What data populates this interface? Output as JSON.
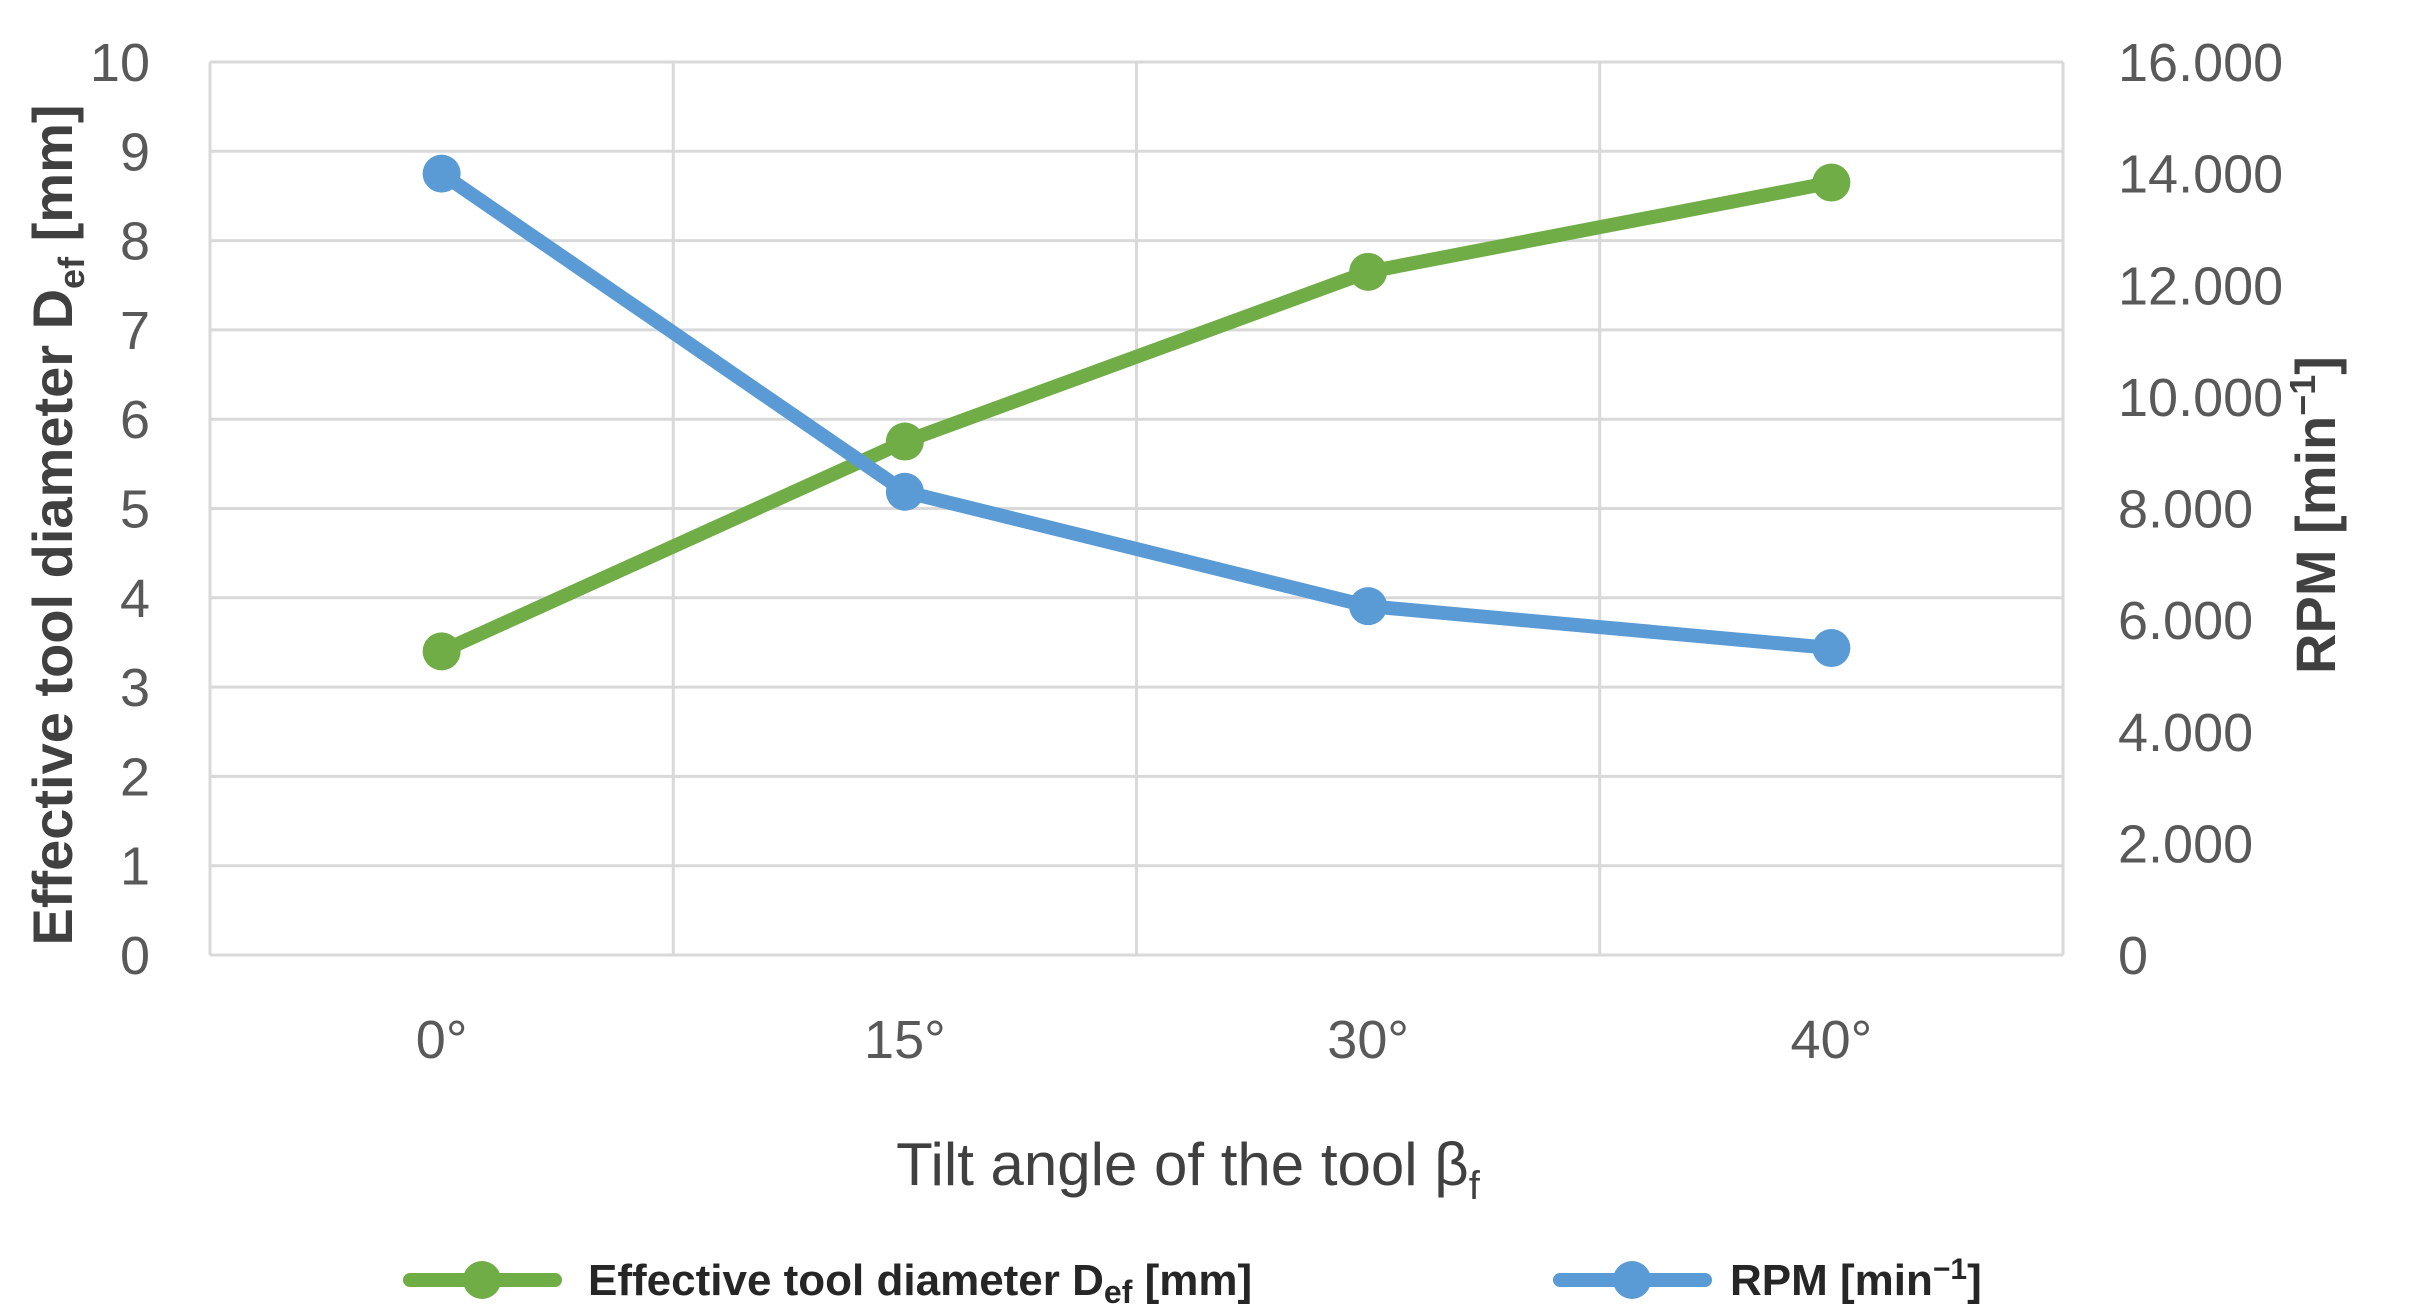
{
  "chart_data": {
    "type": "line",
    "categories": [
      "0°",
      "15°",
      "30°",
      "40°"
    ],
    "series": [
      {
        "name": "Effective tool diameter D",
        "name_sub": "ef",
        "name_suffix": " [mm]",
        "axis": "left",
        "color": "#70ad47",
        "values": [
          3.4,
          5.75,
          7.65,
          8.65
        ]
      },
      {
        "name": "RPM [min",
        "name_sup": "−1",
        "name_suffix": "]",
        "axis": "right",
        "color": "#5b9bd5",
        "values": [
          14000,
          8300,
          6250,
          5500
        ]
      }
    ],
    "xlabel": "Tilt angle of the tool β",
    "xlabel_sub": "f",
    "ylabel_left": "Effective tool diameter D",
    "ylabel_left_sub": "ef",
    "ylabel_left_suffix": " [mm]",
    "ylabel_right": "RPM [min",
    "ylabel_right_sup": "−1",
    "ylabel_right_suffix": "]",
    "ylim_left": [
      0,
      10
    ],
    "yticks_left": [
      "0",
      "1",
      "2",
      "3",
      "4",
      "5",
      "6",
      "7",
      "8",
      "9",
      "10"
    ],
    "ylim_right": [
      0,
      16000
    ],
    "yticks_right": [
      "0",
      "2.000",
      "4.000",
      "6.000",
      "8.000",
      "10.000",
      "12.000",
      "14.000",
      "16.000"
    ],
    "grid": true,
    "legend_position": "bottom"
  }
}
